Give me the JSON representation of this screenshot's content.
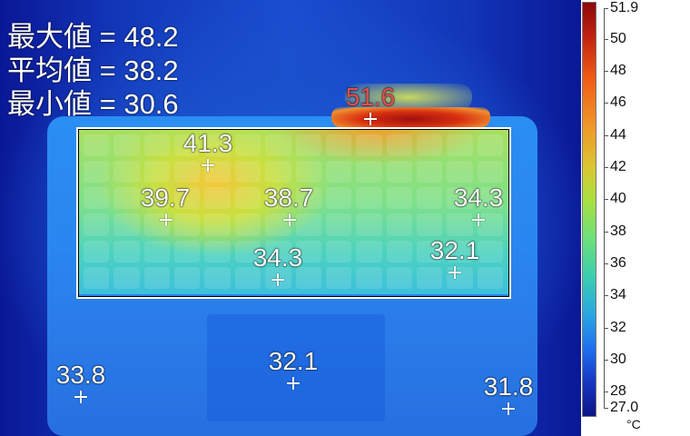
{
  "stats": {
    "max": "最大値 = 48.2",
    "avg": "平均値 = 38.2",
    "min": "最小値 = 30.6"
  },
  "spots": [
    {
      "value": "51.6",
      "color": "#e05050"
    },
    {
      "value": "41.3"
    },
    {
      "value": "39.7"
    },
    {
      "value": "38.7"
    },
    {
      "value": "34.3"
    },
    {
      "value": "34.3"
    },
    {
      "value": "32.1"
    },
    {
      "value": "33.8"
    },
    {
      "value": "32.1"
    },
    {
      "value": "31.8"
    }
  ],
  "scale": {
    "max": "51.9",
    "min": "27.0",
    "ticks": [
      "50",
      "48",
      "46",
      "44",
      "42",
      "40",
      "38",
      "36",
      "34",
      "32",
      "30",
      "28"
    ],
    "unit": "°C",
    "colormap": "rainbow"
  }
}
